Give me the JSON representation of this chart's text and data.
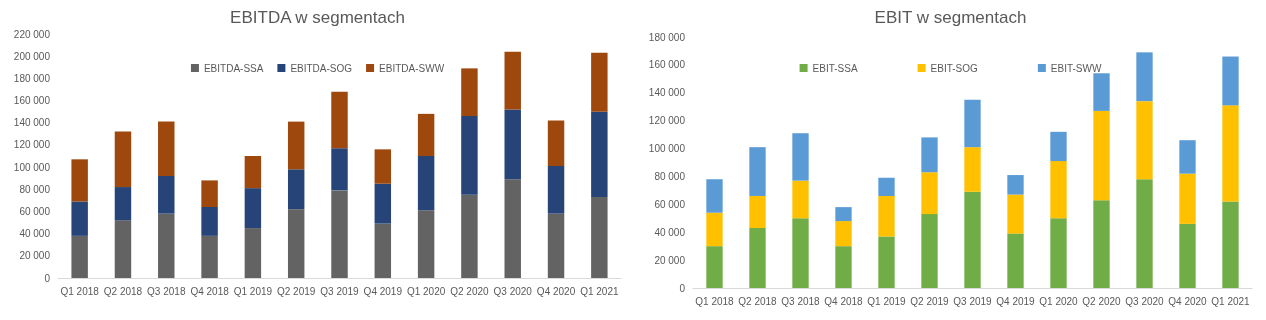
{
  "chart_data": [
    {
      "type": "bar",
      "title": "EBITDA w segmentach",
      "stacked": true,
      "legend": "top",
      "grid": false,
      "categories": [
        "Q1 2018",
        "Q2 2018",
        "Q3 2018",
        "Q4 2018",
        "Q1 2019",
        "Q2 2019",
        "Q3 2019",
        "Q4 2019",
        "Q1 2020",
        "Q2 2020",
        "Q3 2020",
        "Q4 2020",
        "Q1 2021"
      ],
      "ylim": [
        0,
        220000
      ],
      "yticks": [
        {
          "value": 0,
          "label": "0"
        },
        {
          "value": 20000,
          "label": "20 000"
        },
        {
          "value": 40000,
          "label": "40 000"
        },
        {
          "value": 60000,
          "label": "60 000"
        },
        {
          "value": 80000,
          "label": "80 000"
        },
        {
          "value": 100000,
          "label": "100 000"
        },
        {
          "value": 120000,
          "label": "120 000"
        },
        {
          "value": 140000,
          "label": "140 000"
        },
        {
          "value": 160000,
          "label": "160 000"
        },
        {
          "value": 180000,
          "label": "180 000"
        },
        {
          "value": 200000,
          "label": "200 000"
        },
        {
          "value": 220000,
          "label": "220 000"
        }
      ],
      "series": [
        {
          "name": "EBITDA-SSA",
          "color": "#636363",
          "values": [
            38000,
            52000,
            58000,
            38000,
            45000,
            62000,
            79000,
            49000,
            61000,
            75000,
            89000,
            58000,
            73000
          ]
        },
        {
          "name": "EBITDA-SOG",
          "color": "#264478",
          "values": [
            31000,
            30000,
            34000,
            26000,
            36000,
            36000,
            38000,
            36000,
            49000,
            71000,
            63000,
            43000,
            77000
          ]
        },
        {
          "name": "EBITDA-SWW",
          "color": "#9e480e",
          "values": [
            38000,
            50000,
            49000,
            24000,
            29000,
            43000,
            51000,
            31000,
            38000,
            43000,
            52000,
            41000,
            53000
          ]
        }
      ]
    },
    {
      "type": "bar",
      "title": "EBIT w segmentach",
      "stacked": true,
      "legend": "top",
      "grid": false,
      "categories": [
        "Q1 2018",
        "Q2 2018",
        "Q3 2018",
        "Q4 2018",
        "Q1 2019",
        "Q2 2019",
        "Q3 2019",
        "Q4 2019",
        "Q1 2020",
        "Q2 2020",
        "Q3 2020",
        "Q4 2020",
        "Q1 2021"
      ],
      "ylim": [
        0,
        180000
      ],
      "yticks": [
        {
          "value": 0,
          "label": "0"
        },
        {
          "value": 20000,
          "label": "20 000"
        },
        {
          "value": 40000,
          "label": "40 000"
        },
        {
          "value": 60000,
          "label": "60 000"
        },
        {
          "value": 80000,
          "label": "80 000"
        },
        {
          "value": 100000,
          "label": "100 000"
        },
        {
          "value": 120000,
          "label": "120 000"
        },
        {
          "value": 140000,
          "label": "140 000"
        },
        {
          "value": 160000,
          "label": "160 000"
        },
        {
          "value": 180000,
          "label": "180 000"
        }
      ],
      "series": [
        {
          "name": "EBIT-SSA",
          "color": "#70ad47",
          "values": [
            30000,
            43000,
            50000,
            30000,
            37000,
            53000,
            69000,
            39000,
            50000,
            63000,
            78000,
            46000,
            62000
          ]
        },
        {
          "name": "EBIT-SOG",
          "color": "#ffc000",
          "values": [
            24000,
            23000,
            27000,
            18000,
            29000,
            30000,
            32000,
            28000,
            41000,
            64000,
            56000,
            36000,
            69000
          ]
        },
        {
          "name": "EBIT-SWW",
          "color": "#5b9bd5",
          "values": [
            24000,
            35000,
            34000,
            10000,
            13000,
            25000,
            34000,
            14000,
            21000,
            27000,
            35000,
            24000,
            35000
          ]
        }
      ]
    }
  ]
}
